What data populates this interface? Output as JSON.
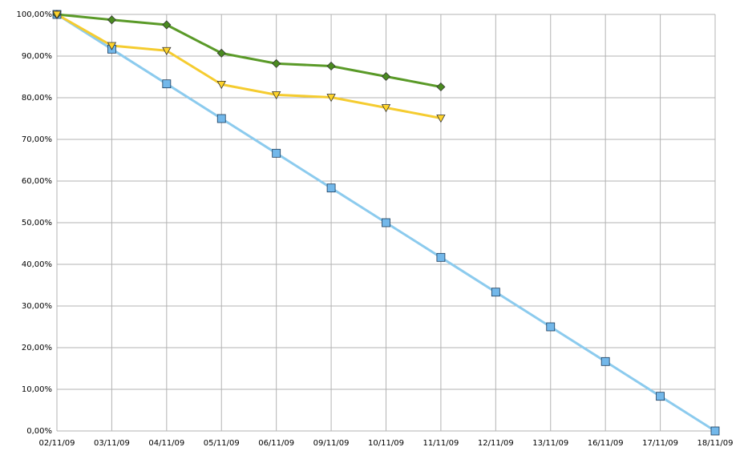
{
  "chart_data": {
    "type": "line",
    "categories": [
      "02/11/09",
      "03/11/09",
      "04/11/09",
      "05/11/09",
      "06/11/09",
      "09/11/09",
      "10/11/09",
      "11/11/09",
      "12/11/09",
      "13/11/09",
      "16/11/09",
      "17/11/09",
      "18/11/09"
    ],
    "series": [
      {
        "color": "#8ccbee",
        "marker_color": "#73b8ea",
        "marker": "square",
        "values": [
          100,
          91.67,
          83.33,
          75,
          66.67,
          58.33,
          50,
          41.67,
          33.33,
          25,
          16.67,
          8.33,
          0
        ]
      },
      {
        "color": "#5a9a28",
        "marker_color": "#4a8a20",
        "marker": "diamond",
        "values": [
          100,
          98.7,
          97.5,
          90.7,
          88.2,
          87.6,
          85.1,
          82.6,
          null,
          null,
          null,
          null,
          null
        ]
      },
      {
        "color": "#f5cc30",
        "marker_color": "#ffd42a",
        "marker": "triangle-down",
        "values": [
          100,
          92.5,
          91.3,
          83.2,
          80.7,
          80.1,
          77.6,
          75.1,
          null,
          null,
          null,
          null,
          null
        ]
      }
    ],
    "ylim": [
      0,
      100
    ],
    "yticks": [
      {
        "value": 0,
        "label": "0,00%"
      },
      {
        "value": 10,
        "label": "10,00%"
      },
      {
        "value": 20,
        "label": "20,00%"
      },
      {
        "value": 30,
        "label": "30,00%"
      },
      {
        "value": 40,
        "label": "40,00%"
      },
      {
        "value": 50,
        "label": "50,00%"
      },
      {
        "value": 60,
        "label": "60,00%"
      },
      {
        "value": 70,
        "label": "70,00%"
      },
      {
        "value": 80,
        "label": "80,00%"
      },
      {
        "value": 90,
        "label": "90,00%"
      },
      {
        "value": 100,
        "label": "100,00%"
      }
    ],
    "grid": true
  }
}
